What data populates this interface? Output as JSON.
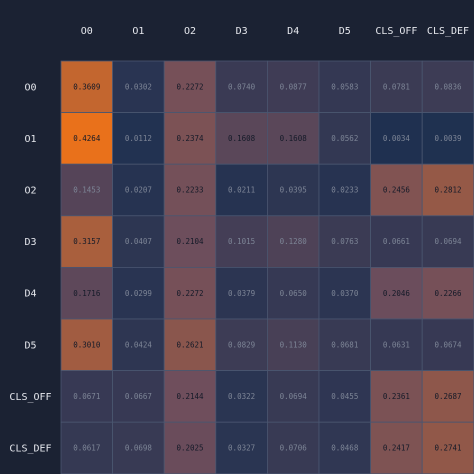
{
  "chart_data": {
    "type": "heatmap",
    "title": "",
    "xlabel": "",
    "ylabel": "",
    "columns": [
      "O0",
      "O1",
      "O2",
      "D3",
      "D4",
      "D5",
      "CLS_OFF",
      "CLS_DEF"
    ],
    "rows": [
      "O0",
      "O1",
      "O2",
      "D3",
      "D4",
      "D5",
      "CLS_OFF",
      "CLS_DEF"
    ],
    "values": [
      [
        0.3609,
        0.0302,
        0.2272,
        0.074,
        0.0877,
        0.0583,
        0.0781,
        0.0836
      ],
      [
        0.4264,
        0.0112,
        0.2374,
        0.1608,
        0.1608,
        0.0562,
        0.0034,
        0.0039
      ],
      [
        0.1453,
        0.0207,
        0.2233,
        0.0211,
        0.0395,
        0.0233,
        0.2456,
        0.2812
      ],
      [
        0.3157,
        0.0407,
        0.2104,
        0.1015,
        0.128,
        0.0763,
        0.0661,
        0.0694
      ],
      [
        0.1716,
        0.0299,
        0.2272,
        0.0379,
        0.065,
        0.037,
        0.2046,
        0.2266
      ],
      [
        0.301,
        0.0424,
        0.2621,
        0.0829,
        0.113,
        0.0681,
        0.0631,
        0.0674
      ],
      [
        0.0671,
        0.0667,
        0.2144,
        0.0322,
        0.0694,
        0.0455,
        0.2361,
        0.2687
      ],
      [
        0.0617,
        0.0698,
        0.2025,
        0.0327,
        0.0706,
        0.0468,
        0.2417,
        0.2741
      ]
    ],
    "value_range": [
      0,
      0.4264
    ],
    "colors": {
      "background": "#1b2233",
      "low": "#1e3050",
      "mid": "#6e4e5c",
      "high": "#e9711b",
      "grid": "#4a5670",
      "text_dark": "#141a28",
      "text_light": "#7d8596"
    }
  }
}
